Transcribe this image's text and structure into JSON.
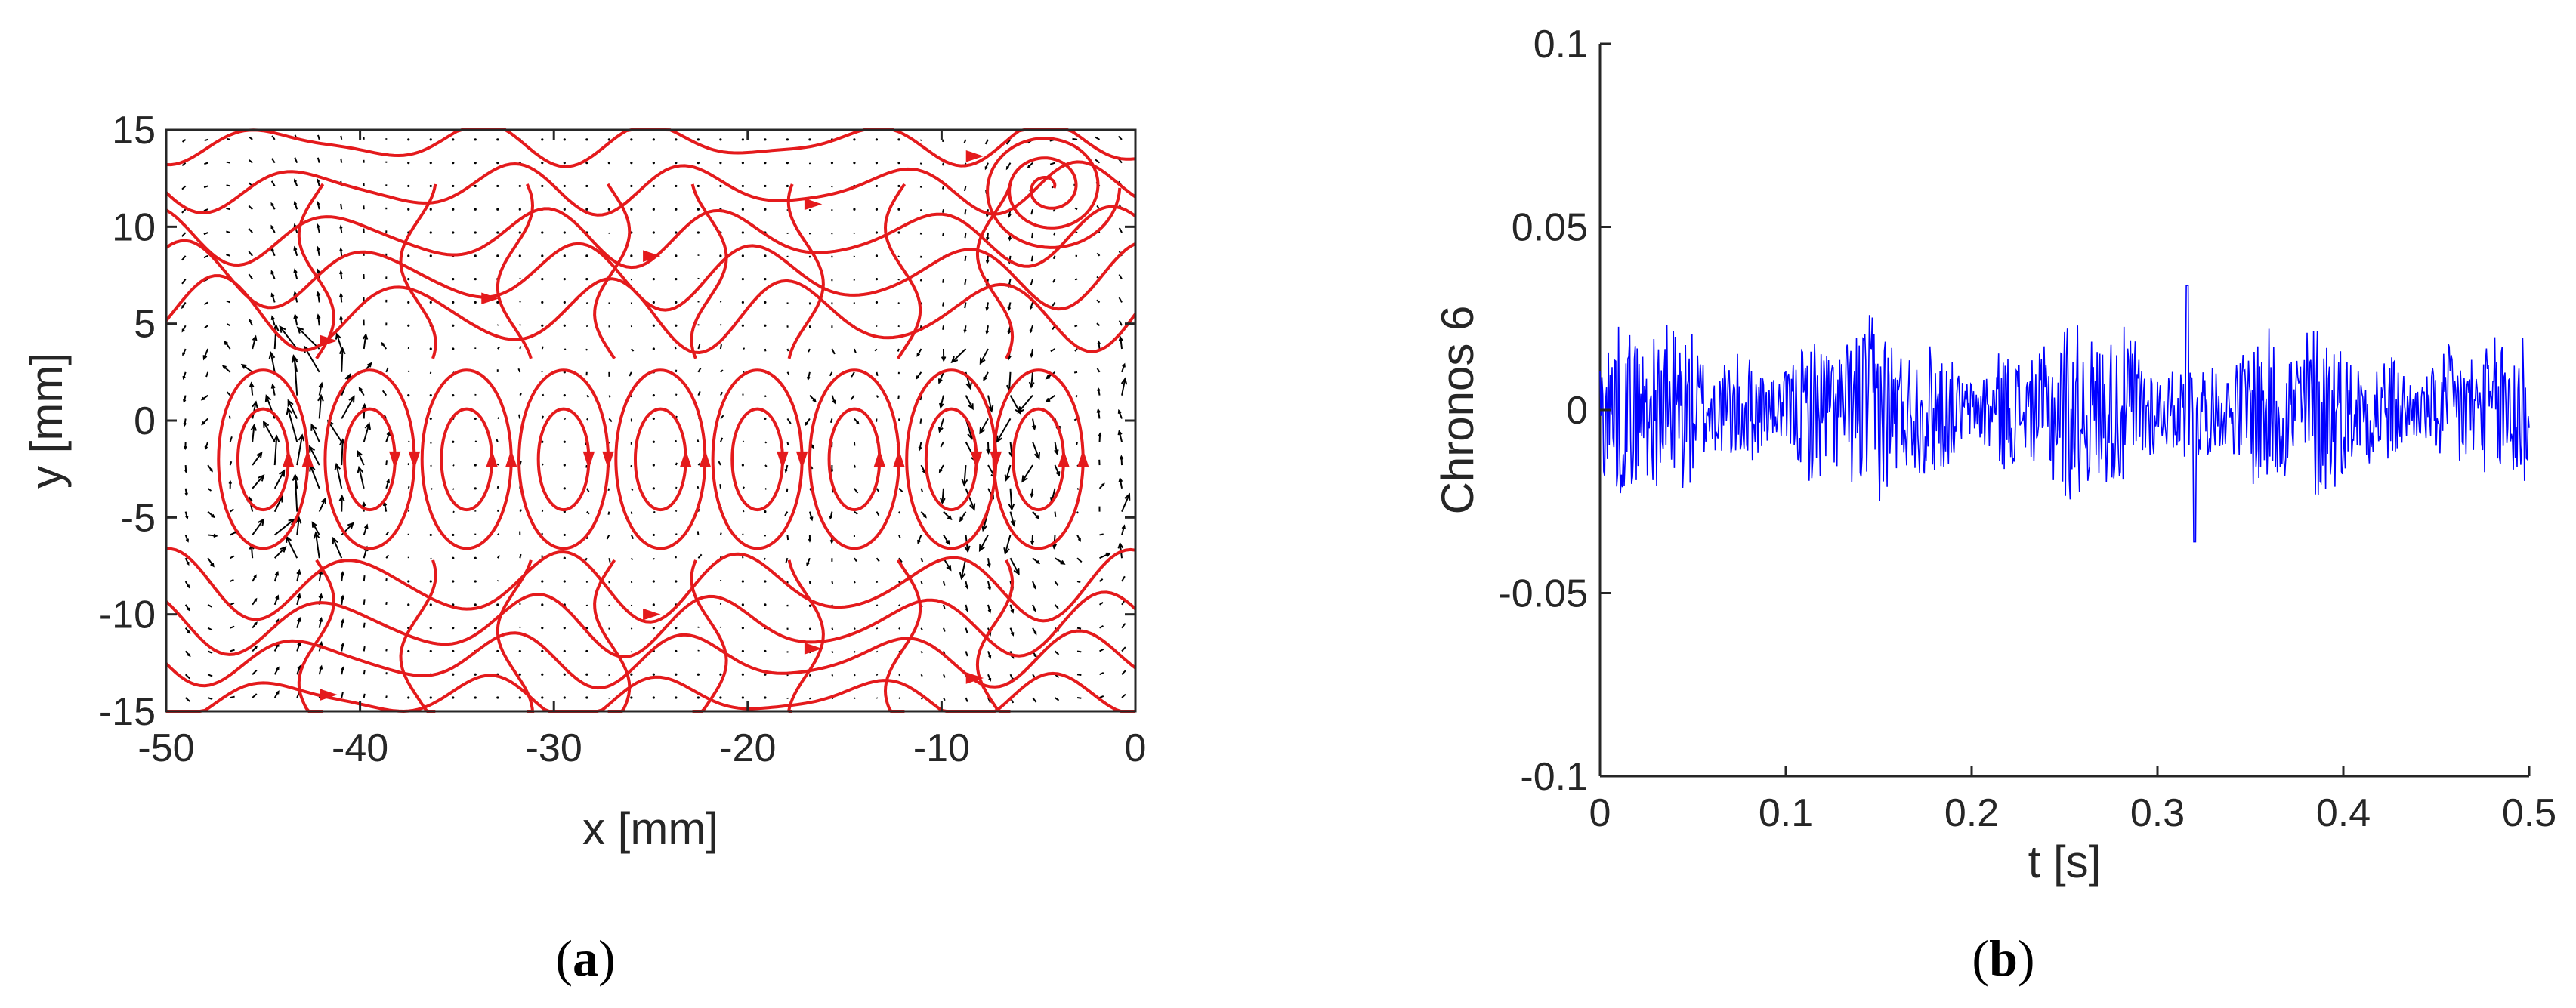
{
  "chart_data": [
    {
      "type": "vector-field",
      "panel_label": {
        "open": "(",
        "letter": "a",
        "close": ")"
      },
      "xlabel": "x [mm]",
      "ylabel": "y [mm]",
      "xlim": [
        -50,
        0
      ],
      "ylim": [
        -15,
        15
      ],
      "xticks": [
        "-50",
        "-40",
        "-30",
        "-20",
        "-10",
        "0"
      ],
      "yticks": [
        "15",
        "10",
        "5",
        "0",
        "-5",
        "-10",
        "-15"
      ],
      "grid": false,
      "legend": "none",
      "vortex_centers_x": [
        -45,
        -39.5,
        -34.5,
        -29.5,
        -24.5,
        -19.5,
        -14.5,
        -9.5,
        -5
      ],
      "vortex_center_y": -2,
      "corner_vortex": {
        "x": -4.5,
        "y": 12
      },
      "series_colors": {
        "streamlines": "#e41a1c",
        "vectors": "#000000"
      }
    },
    {
      "type": "line",
      "panel_label": {
        "open": "(",
        "letter": "b",
        "close": ")"
      },
      "xlabel": "t [s]",
      "ylabel": "Chronos 6",
      "xlim": [
        0,
        0.5
      ],
      "ylim": [
        -0.1,
        0.1
      ],
      "xticks": [
        "0",
        "0.1",
        "0.2",
        "0.3",
        "0.4",
        "0.5"
      ],
      "yticks": [
        "0.1",
        "0.05",
        "0",
        "-0.05",
        "-0.1"
      ],
      "grid": false,
      "legend": "none",
      "signal": {
        "mean": 0,
        "amplitude": 0.02,
        "peak": 0.034,
        "trough": -0.036,
        "samples": 1000
      },
      "series_colors": {
        "line": "#0000ff"
      }
    }
  ]
}
